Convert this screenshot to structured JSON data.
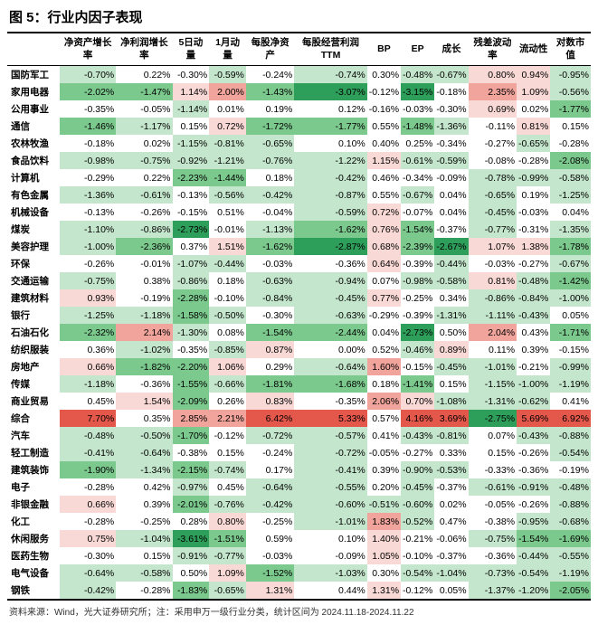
{
  "title": "图 5：行业内因子表现",
  "footer": "资料来源：Wind，光大证券研究所；注：采用申万一级行业分类，统计区间为 2024.11.18-2024.11.22",
  "columns": [
    "净资产增长率",
    "净利润增长率",
    "5日动量",
    "1月动量",
    "每股净资产",
    "每股经营利润TTM",
    "BP",
    "EP",
    "成长",
    "残差波动率",
    "流动性",
    "对数市值"
  ],
  "rows": [
    {
      "label": "国防军工",
      "cells": [
        "-0.70%",
        "0.22%",
        "-0.30%",
        "-0.59%",
        "-0.24%",
        "-0.74%",
        "0.30%",
        "-0.48%",
        "-0.67%",
        "0.80%",
        "0.94%",
        "-0.95%"
      ]
    },
    {
      "label": "家用电器",
      "cells": [
        "-2.02%",
        "-1.47%",
        "1.14%",
        "2.00%",
        "-1.43%",
        "-3.07%",
        "-0.12%",
        "-3.15%",
        "-0.18%",
        "2.35%",
        "1.09%",
        "-0.56%"
      ]
    },
    {
      "label": "公用事业",
      "cells": [
        "-0.35%",
        "-0.05%",
        "-1.14%",
        "0.01%",
        "0.19%",
        "0.12%",
        "-0.16%",
        "-0.03%",
        "-0.30%",
        "0.69%",
        "0.02%",
        "-1.77%"
      ]
    },
    {
      "label": "通信",
      "cells": [
        "-1.46%",
        "-1.17%",
        "0.15%",
        "0.72%",
        "-1.72%",
        "-1.77%",
        "0.55%",
        "-1.48%",
        "-1.36%",
        "-0.11%",
        "0.81%",
        "0.15%"
      ]
    },
    {
      "label": "农林牧渔",
      "cells": [
        "-0.18%",
        "0.02%",
        "-1.15%",
        "-0.81%",
        "-0.65%",
        "0.10%",
        "0.40%",
        "0.25%",
        "-0.34%",
        "-0.27%",
        "-0.65%",
        "-0.28%"
      ]
    },
    {
      "label": "食品饮料",
      "cells": [
        "-0.98%",
        "-0.75%",
        "-0.92%",
        "-1.21%",
        "-0.76%",
        "-1.22%",
        "1.15%",
        "-0.61%",
        "-0.59%",
        "-0.08%",
        "-0.28%",
        "-2.08%"
      ]
    },
    {
      "label": "计算机",
      "cells": [
        "-0.29%",
        "0.22%",
        "-2.23%",
        "-1.44%",
        "0.18%",
        "-0.42%",
        "0.46%",
        "-0.34%",
        "-0.09%",
        "-0.78%",
        "-0.99%",
        "-0.58%"
      ]
    },
    {
      "label": "有色金属",
      "cells": [
        "-1.36%",
        "-0.61%",
        "-0.13%",
        "-0.56%",
        "-0.42%",
        "-0.87%",
        "0.55%",
        "-0.67%",
        "0.04%",
        "-0.65%",
        "0.19%",
        "-1.25%"
      ]
    },
    {
      "label": "机械设备",
      "cells": [
        "-0.13%",
        "-0.26%",
        "-0.15%",
        "0.51%",
        "-0.04%",
        "-0.59%",
        "0.72%",
        "-0.07%",
        "0.04%",
        "-0.45%",
        "-0.03%",
        "0.04%"
      ]
    },
    {
      "label": "煤炭",
      "cells": [
        "-1.10%",
        "-0.86%",
        "-2.73%",
        "-0.01%",
        "-1.13%",
        "-1.62%",
        "0.76%",
        "-1.54%",
        "-0.37%",
        "-0.77%",
        "-0.31%",
        "-1.35%"
      ]
    },
    {
      "label": "美容护理",
      "cells": [
        "-1.00%",
        "-2.36%",
        "0.37%",
        "1.51%",
        "-1.62%",
        "-2.87%",
        "0.68%",
        "-2.39%",
        "-2.67%",
        "1.07%",
        "1.38%",
        "-1.78%"
      ]
    },
    {
      "label": "环保",
      "cells": [
        "-0.26%",
        "-0.01%",
        "-1.07%",
        "-0.44%",
        "-0.03%",
        "-0.36%",
        "0.64%",
        "-0.39%",
        "-0.44%",
        "-0.03%",
        "-0.27%",
        "-0.67%"
      ]
    },
    {
      "label": "交通运输",
      "cells": [
        "-0.75%",
        "0.38%",
        "-0.86%",
        "0.18%",
        "-0.63%",
        "-0.94%",
        "0.07%",
        "-0.98%",
        "-0.58%",
        "0.81%",
        "-0.48%",
        "-1.42%"
      ]
    },
    {
      "label": "建筑材料",
      "cells": [
        "0.93%",
        "-0.19%",
        "-2.28%",
        "-0.10%",
        "-0.84%",
        "-0.45%",
        "0.77%",
        "-0.25%",
        "0.34%",
        "-0.86%",
        "-0.84%",
        "-1.00%"
      ]
    },
    {
      "label": "银行",
      "cells": [
        "-1.25%",
        "-1.18%",
        "-1.58%",
        "-0.50%",
        "-0.30%",
        "-0.63%",
        "-0.29%",
        "-0.39%",
        "-1.31%",
        "-1.11%",
        "-0.43%",
        "0.05%"
      ]
    },
    {
      "label": "石油石化",
      "cells": [
        "-2.32%",
        "2.14%",
        "-1.30%",
        "0.08%",
        "-1.54%",
        "-2.44%",
        "0.04%",
        "-2.73%",
        "0.50%",
        "2.04%",
        "0.43%",
        "-1.71%"
      ]
    },
    {
      "label": "纺织服装",
      "cells": [
        "0.36%",
        "-1.02%",
        "-0.35%",
        "-0.85%",
        "0.87%",
        "0.00%",
        "0.52%",
        "-0.46%",
        "0.89%",
        "0.11%",
        "0.39%",
        "-0.15%"
      ]
    },
    {
      "label": "房地产",
      "cells": [
        "0.66%",
        "-1.82%",
        "-2.20%",
        "1.06%",
        "0.29%",
        "-0.64%",
        "1.60%",
        "-0.15%",
        "-0.45%",
        "-1.01%",
        "-0.21%",
        "-0.99%"
      ]
    },
    {
      "label": "传媒",
      "cells": [
        "-1.18%",
        "-0.36%",
        "-1.55%",
        "-0.66%",
        "-1.81%",
        "-1.68%",
        "0.18%",
        "-1.41%",
        "0.15%",
        "-1.15%",
        "-1.00%",
        "-1.19%"
      ]
    },
    {
      "label": "商业贸易",
      "cells": [
        "0.45%",
        "1.54%",
        "-2.09%",
        "0.26%",
        "0.83%",
        "-0.35%",
        "2.06%",
        "0.70%",
        "-1.08%",
        "-1.31%",
        "-0.62%",
        "0.41%"
      ]
    },
    {
      "label": "综合",
      "cells": [
        "7.70%",
        "0.35%",
        "2.85%",
        "2.21%",
        "6.42%",
        "5.33%",
        "0.57%",
        "4.16%",
        "3.69%",
        "-2.75%",
        "5.69%",
        "6.92%"
      ]
    },
    {
      "label": "汽车",
      "cells": [
        "-0.48%",
        "-0.50%",
        "-1.70%",
        "-0.12%",
        "-0.72%",
        "-0.57%",
        "0.41%",
        "-0.43%",
        "-0.81%",
        "0.07%",
        "-0.43%",
        "-0.88%"
      ]
    },
    {
      "label": "轻工制造",
      "cells": [
        "-0.41%",
        "-0.64%",
        "-0.38%",
        "0.15%",
        "-0.24%",
        "-0.72%",
        "-0.05%",
        "-0.27%",
        "0.33%",
        "0.15%",
        "-0.26%",
        "-0.54%"
      ]
    },
    {
      "label": "建筑装饰",
      "cells": [
        "-1.90%",
        "-1.34%",
        "-2.15%",
        "-0.74%",
        "0.17%",
        "-0.41%",
        "0.39%",
        "-0.90%",
        "-0.53%",
        "-0.33%",
        "-0.36%",
        "-0.19%"
      ]
    },
    {
      "label": "电子",
      "cells": [
        "-0.28%",
        "0.42%",
        "-0.97%",
        "0.45%",
        "-0.64%",
        "-0.55%",
        "0.20%",
        "-0.45%",
        "-0.37%",
        "-0.61%",
        "-0.91%",
        "-0.48%"
      ]
    },
    {
      "label": "非银金融",
      "cells": [
        "0.66%",
        "0.39%",
        "-2.01%",
        "-0.76%",
        "-0.42%",
        "-0.60%",
        "-0.51%",
        "-0.60%",
        "0.02%",
        "-0.05%",
        "-0.26%",
        "-0.88%"
      ]
    },
    {
      "label": "化工",
      "cells": [
        "-0.28%",
        "-0.25%",
        "0.28%",
        "0.80%",
        "-0.25%",
        "-1.01%",
        "1.83%",
        "-0.52%",
        "0.47%",
        "-0.38%",
        "-0.95%",
        "-0.68%"
      ]
    },
    {
      "label": "休闲服务",
      "cells": [
        "0.75%",
        "-1.04%",
        "-3.61%",
        "-1.51%",
        "0.59%",
        "0.10%",
        "1.40%",
        "-0.21%",
        "-0.06%",
        "-0.75%",
        "-1.54%",
        "-1.69%"
      ]
    },
    {
      "label": "医药生物",
      "cells": [
        "-0.30%",
        "0.15%",
        "-0.91%",
        "-0.77%",
        "-0.03%",
        "-0.09%",
        "1.05%",
        "-0.10%",
        "-0.37%",
        "-0.36%",
        "-0.44%",
        "-0.55%"
      ]
    },
    {
      "label": "电气设备",
      "cells": [
        "-0.64%",
        "-0.58%",
        "0.50%",
        "1.09%",
        "-1.52%",
        "-1.03%",
        "0.30%",
        "-0.54%",
        "-1.04%",
        "-0.73%",
        "-0.54%",
        "-1.19%"
      ]
    },
    {
      "label": "钢铁",
      "cells": [
        "-0.42%",
        "-0.28%",
        "-1.83%",
        "-0.65%",
        "1.31%",
        "0.44%",
        "1.31%",
        "-0.12%",
        "0.05%",
        "-1.37%",
        "-1.20%",
        "-2.05%"
      ]
    }
  ],
  "heat": {
    "green_strong": "#2e9f5a",
    "green_mid": "#7cc98e",
    "green_light": "#c4e6cc",
    "neutral": "#ffffff",
    "red_light": "#f8d9d6",
    "red_mid": "#f0a49c",
    "red_strong": "#e4574b"
  }
}
